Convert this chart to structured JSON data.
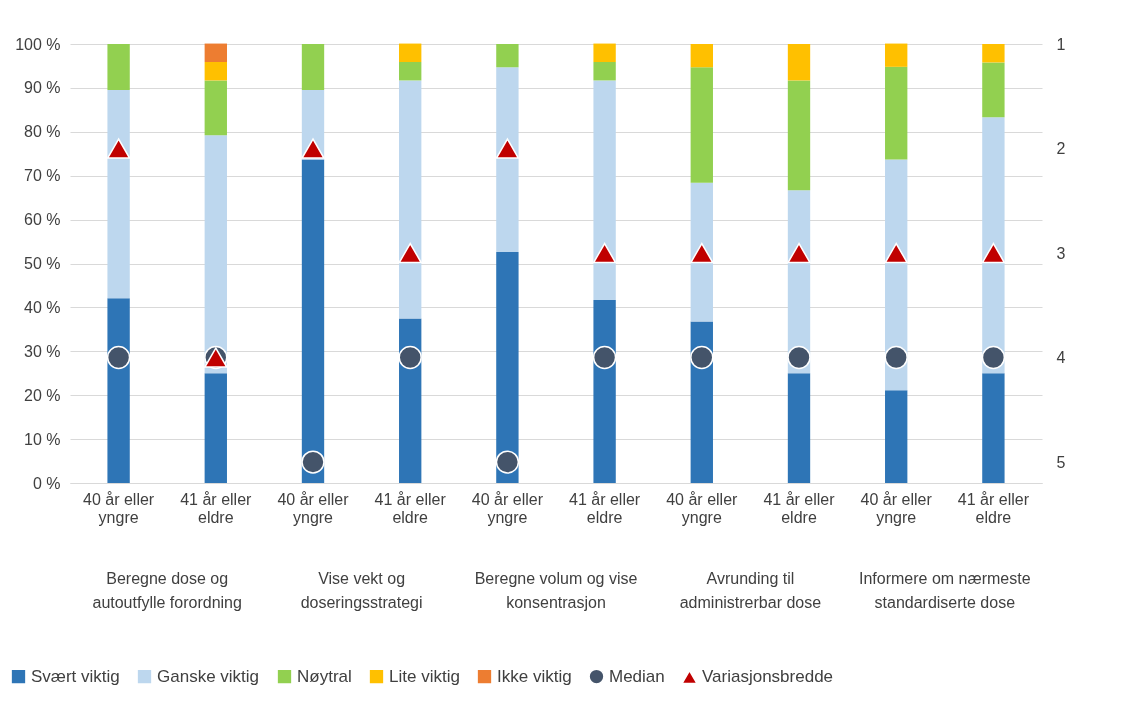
{
  "chart_data": {
    "type": "bar",
    "stacked": true,
    "categories": [
      "40 år eller yngre",
      "41 år eller eldre",
      "40 år eller yngre",
      "41 år eller eldre",
      "40 år eller yngre",
      "41 år eller eldre",
      "40 år eller yngre",
      "41 år eller eldre",
      "40 år eller yngre",
      "41 år eller eldre"
    ],
    "annotations": [
      "Beregne dose og autoutfylle forordning",
      "Vise vekt og doseringsstrategi",
      "Beregne volum og vise konsentrasjon",
      "Avrunding til administrerbar dose",
      "Informere om nærmeste standardiserte dose"
    ],
    "series": [
      {
        "name": "Svært viktig",
        "color": "#2e75b6",
        "values": [
          42.1,
          25,
          73.7,
          37.5,
          52.6,
          41.7,
          36.8,
          25,
          21.1,
          25
        ]
      },
      {
        "name": "Ganske viktig",
        "color": "#bdd7ee",
        "values": [
          47.4,
          54.2,
          15.8,
          54.2,
          42.1,
          50,
          31.6,
          41.7,
          52.6,
          58.3
        ]
      },
      {
        "name": "Nøytral",
        "color": "#92d050",
        "values": [
          10.5,
          12.5,
          10.5,
          4.2,
          5.3,
          4.2,
          26.3,
          25,
          21.1,
          12.5
        ]
      },
      {
        "name": "Lite viktig",
        "color": "#ffc000",
        "values": [
          null,
          4.2,
          null,
          4.2,
          null,
          4.2,
          5.3,
          8.3,
          5.3,
          4.2
        ]
      },
      {
        "name": "Ikke viktig",
        "color": "#ed7d31",
        "values": [
          null,
          4.2,
          null,
          null,
          null,
          null,
          null,
          null,
          null,
          null
        ]
      },
      {
        "name": "Median",
        "color": "#44546a",
        "type": "scatter",
        "axis": "y2",
        "marker": "circle",
        "values": [
          4,
          4,
          5,
          4,
          5,
          4,
          4,
          4,
          4,
          4
        ]
      },
      {
        "name": "Variasjonsbredde",
        "color": "#c00000",
        "type": "scatter",
        "axis": "y2",
        "marker": "triangle",
        "values": [
          2,
          4,
          2,
          3,
          2,
          3,
          3,
          3,
          3,
          3
        ]
      }
    ],
    "ylim": [
      0,
      100
    ],
    "yticks": [
      {
        "value": 0,
        "label": "0 %"
      },
      {
        "value": 10,
        "label": "10 %"
      },
      {
        "value": 20,
        "label": "20 %"
      },
      {
        "value": 30,
        "label": "30 %"
      },
      {
        "value": 40,
        "label": "40 %"
      },
      {
        "value": 50,
        "label": "50 %"
      },
      {
        "value": 60,
        "label": "60 %"
      },
      {
        "value": 70,
        "label": "70 %"
      },
      {
        "value": 80,
        "label": "80 %"
      },
      {
        "value": 90,
        "label": "90 %"
      },
      {
        "value": 100,
        "label": "100 %"
      }
    ],
    "y2lim": [
      5.2,
      1
    ],
    "y2ticks": [
      1,
      2,
      3,
      4,
      5
    ],
    "grid": "y",
    "legend": "bottom"
  }
}
